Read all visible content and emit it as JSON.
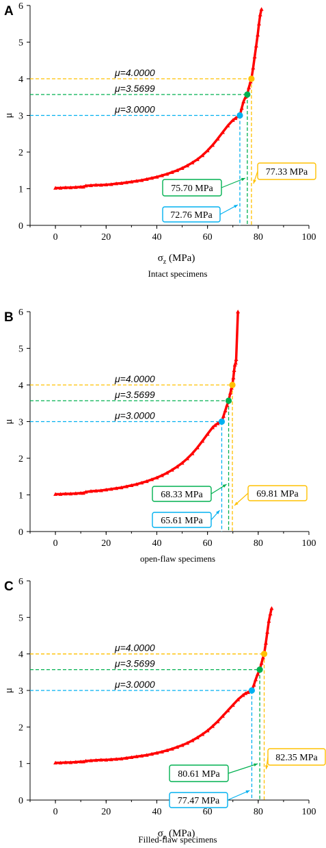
{
  "chart_data": [
    {
      "type": "scatter",
      "panel_label": "A",
      "caption": "Intact specimens",
      "xlabel_main": "σ",
      "xlabel_sub": "z",
      "xlabel_unit": " (MPa)",
      "ylabel": "μ",
      "xlim": [
        -10,
        100
      ],
      "ylim": [
        0,
        6
      ],
      "xticks": [
        0,
        20,
        40,
        60,
        80,
        100
      ],
      "yticks": [
        0,
        1,
        2,
        3,
        4,
        5,
        6
      ],
      "series": [
        {
          "marker": "triangle",
          "color": "#ff0000",
          "x": [
            0,
            2,
            4,
            6,
            8,
            10,
            11,
            12,
            14,
            16,
            18,
            20,
            22,
            24,
            26,
            28,
            30,
            32,
            34,
            36,
            38,
            40,
            42,
            44,
            46,
            48,
            50,
            52,
            54,
            56,
            58,
            60,
            62,
            64,
            66,
            68,
            70,
            71,
            72,
            72.76,
            73.5,
            74.2,
            75,
            75.7,
            76.3,
            77,
            77.33,
            78,
            78.6,
            79.2,
            79.8,
            80.3,
            80.8,
            81.3
          ],
          "y": [
            1.02,
            1.02,
            1.03,
            1.03,
            1.04,
            1.05,
            1.05,
            1.08,
            1.09,
            1.1,
            1.1,
            1.11,
            1.12,
            1.14,
            1.15,
            1.17,
            1.19,
            1.21,
            1.23,
            1.26,
            1.29,
            1.32,
            1.36,
            1.4,
            1.45,
            1.5,
            1.56,
            1.63,
            1.71,
            1.8,
            1.91,
            2.04,
            2.19,
            2.36,
            2.54,
            2.72,
            2.87,
            2.92,
            2.97,
            3.0,
            3.2,
            3.38,
            3.5,
            3.57,
            3.76,
            3.92,
            4.0,
            4.3,
            4.6,
            4.9,
            5.2,
            5.5,
            5.75,
            5.9
          ]
        }
      ],
      "reference_lines": [
        {
          "label": "μ=4.0000",
          "mu": 4.0,
          "sigma": 77.33,
          "color": "#ffc000"
        },
        {
          "label": "μ=3.5699",
          "mu": 3.5699,
          "sigma": 75.7,
          "color": "#00b050"
        },
        {
          "label": "μ=3.0000",
          "mu": 3.0,
          "sigma": 72.76,
          "color": "#00b0f0"
        }
      ],
      "callouts": [
        {
          "text": "77.33 MPa",
          "color": "#ffc000"
        },
        {
          "text": "75.70 MPa",
          "color": "#00b050"
        },
        {
          "text": "72.76 MPa",
          "color": "#00b0f0"
        }
      ]
    },
    {
      "type": "scatter",
      "panel_label": "B",
      "caption": "open-flaw specimens",
      "xlabel_main": "",
      "xlabel_sub": "",
      "xlabel_unit": "",
      "ylabel": "μ",
      "xlim": [
        -10,
        100
      ],
      "ylim": [
        0,
        6
      ],
      "xticks": [
        0,
        20,
        40,
        60,
        80,
        100
      ],
      "yticks": [
        0,
        1,
        2,
        3,
        4,
        5,
        6
      ],
      "series": [
        {
          "marker": "triangle",
          "color": "#ff0000",
          "x": [
            0,
            2,
            4,
            6,
            8,
            10,
            11,
            12,
            14,
            16,
            18,
            20,
            22,
            24,
            26,
            28,
            30,
            32,
            34,
            36,
            38,
            40,
            42,
            44,
            46,
            48,
            50,
            52,
            54,
            56,
            58,
            60,
            62,
            63,
            64,
            65,
            65.61,
            66.3,
            67,
            67.7,
            68.33,
            69,
            69.5,
            69.81,
            70.2,
            70.5,
            70.8,
            71.1,
            71.3,
            72
          ],
          "y": [
            1.02,
            1.02,
            1.03,
            1.03,
            1.04,
            1.05,
            1.05,
            1.08,
            1.1,
            1.11,
            1.12,
            1.14,
            1.16,
            1.18,
            1.2,
            1.23,
            1.26,
            1.29,
            1.33,
            1.37,
            1.42,
            1.47,
            1.53,
            1.6,
            1.68,
            1.77,
            1.87,
            1.99,
            2.13,
            2.29,
            2.47,
            2.66,
            2.84,
            2.9,
            2.95,
            2.98,
            3.0,
            3.15,
            3.3,
            3.45,
            3.57,
            3.78,
            3.92,
            4.0,
            4.2,
            4.4,
            4.55,
            4.6,
            4.7,
            6.0
          ]
        }
      ],
      "reference_lines": [
        {
          "label": "μ=4.0000",
          "mu": 4.0,
          "sigma": 69.81,
          "color": "#ffc000"
        },
        {
          "label": "μ=3.5699",
          "mu": 3.5699,
          "sigma": 68.33,
          "color": "#00b050"
        },
        {
          "label": "μ=3.0000",
          "mu": 3.0,
          "sigma": 65.61,
          "color": "#00b0f0"
        }
      ],
      "callouts": [
        {
          "text": "69.81 MPa",
          "color": "#ffc000"
        },
        {
          "text": "68.33 MPa",
          "color": "#00b050"
        },
        {
          "text": "65.61 MPa",
          "color": "#00b0f0"
        }
      ]
    },
    {
      "type": "scatter",
      "panel_label": "C",
      "caption": "Filled-flaw specimens",
      "xlabel_main": "σ",
      "xlabel_sub": "z",
      "xlabel_unit": " (MPa)",
      "ylabel": "μ",
      "xlim": [
        -10,
        100
      ],
      "ylim": [
        0,
        6
      ],
      "xticks": [
        0,
        20,
        40,
        60,
        80,
        100
      ],
      "yticks": [
        0,
        1,
        2,
        3,
        4,
        5,
        6
      ],
      "series": [
        {
          "marker": "triangle",
          "color": "#ff0000",
          "x": [
            0,
            2,
            4,
            6,
            8,
            10,
            11,
            12,
            14,
            16,
            18,
            20,
            22,
            24,
            26,
            28,
            30,
            32,
            34,
            36,
            38,
            40,
            42,
            44,
            46,
            48,
            50,
            52,
            54,
            56,
            58,
            60,
            62,
            64,
            66,
            68,
            70,
            72,
            74,
            75,
            76,
            77,
            77.47,
            78.3,
            79,
            79.8,
            80.61,
            81.3,
            81.9,
            82.35,
            83,
            83.6,
            84.2,
            84.8,
            85.3
          ],
          "y": [
            1.02,
            1.02,
            1.03,
            1.03,
            1.04,
            1.05,
            1.05,
            1.07,
            1.08,
            1.09,
            1.1,
            1.1,
            1.11,
            1.12,
            1.13,
            1.15,
            1.17,
            1.19,
            1.21,
            1.23,
            1.26,
            1.29,
            1.32,
            1.36,
            1.4,
            1.45,
            1.5,
            1.56,
            1.63,
            1.71,
            1.8,
            1.9,
            2.02,
            2.15,
            2.3,
            2.45,
            2.6,
            2.75,
            2.87,
            2.92,
            2.95,
            2.98,
            3.0,
            3.15,
            3.3,
            3.45,
            3.57,
            3.75,
            3.9,
            4.0,
            4.3,
            4.6,
            4.9,
            5.1,
            5.25
          ]
        }
      ],
      "reference_lines": [
        {
          "label": "μ=4.0000",
          "mu": 4.0,
          "sigma": 82.35,
          "color": "#ffc000"
        },
        {
          "label": "μ=3.5699",
          "mu": 3.5699,
          "sigma": 80.61,
          "color": "#00b050"
        },
        {
          "label": "μ=3.0000",
          "mu": 3.0,
          "sigma": 77.47,
          "color": "#00b0f0"
        }
      ],
      "callouts": [
        {
          "text": "82.35 MPa",
          "color": "#ffc000"
        },
        {
          "text": "80.61 MPa",
          "color": "#00b050"
        },
        {
          "text": "77.47 MPa",
          "color": "#00b0f0"
        }
      ]
    }
  ]
}
